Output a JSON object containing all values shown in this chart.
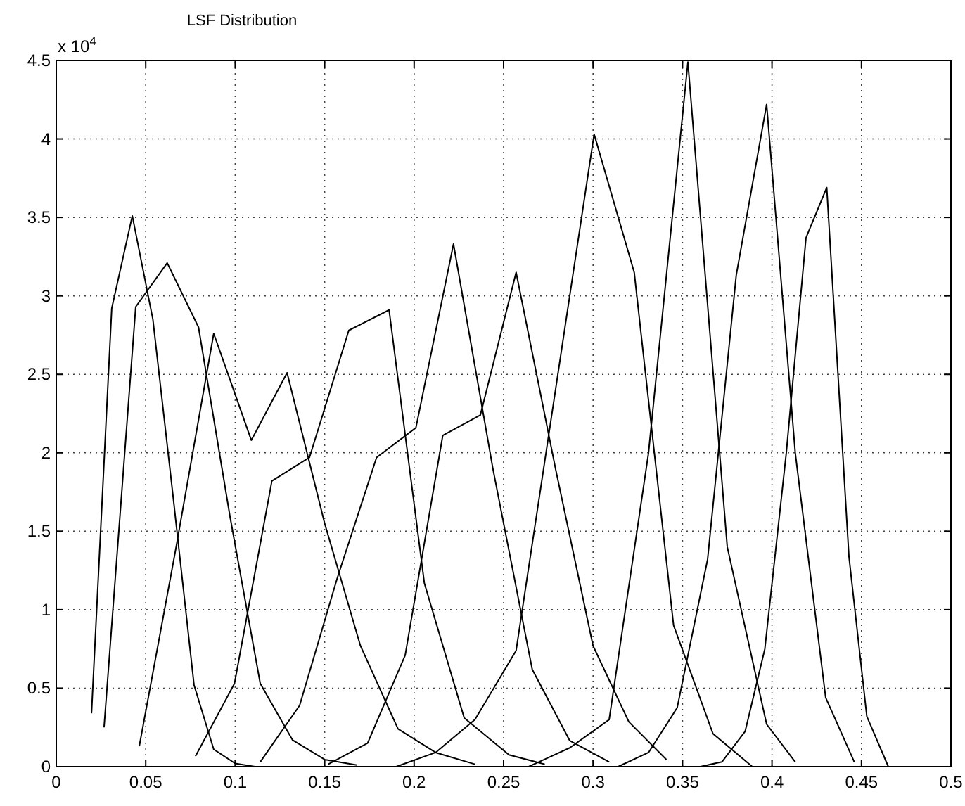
{
  "chart_data": {
    "type": "line",
    "title": "LSF Distribution",
    "annotations": [
      "x 10$^{4}$"
    ],
    "xlim": [
      0,
      0.5
    ],
    "ylim": [
      0,
      4.5
    ],
    "xticks": [
      0,
      0.05,
      0.1,
      0.15,
      0.2,
      0.25,
      0.3,
      0.35,
      0.4,
      0.45,
      0.5
    ],
    "yticks": [
      0,
      0.5,
      1,
      1.5,
      2,
      2.5,
      3,
      3.5,
      4,
      4.5
    ],
    "grid": true,
    "series": [
      {
        "color": "#000000",
        "x": [
          0.0197,
          0.031,
          0.0425,
          0.054,
          0.0655,
          0.077,
          0.088,
          0.1,
          0.111
        ],
        "values": [
          0.34,
          2.92,
          3.51,
          2.85,
          1.7,
          0.52,
          0.11,
          0.02,
          0.0
        ]
      },
      {
        "color": "#000000",
        "x": [
          0.0267,
          0.0444,
          0.062,
          0.0795,
          0.097,
          0.114,
          0.132,
          0.15,
          0.168
        ],
        "values": [
          0.25,
          2.93,
          3.21,
          2.8,
          1.6,
          0.53,
          0.17,
          0.045,
          0.01
        ]
      },
      {
        "color": "#000000",
        "x": [
          0.0464,
          0.067,
          0.088,
          0.109,
          0.129,
          0.15,
          0.17,
          0.191,
          0.212,
          0.234
        ],
        "values": [
          0.13,
          1.4,
          2.76,
          2.08,
          2.51,
          1.55,
          0.77,
          0.24,
          0.09,
          0.015
        ]
      },
      {
        "color": "#000000",
        "x": [
          0.0778,
          0.0996,
          0.1205,
          0.1415,
          0.1635,
          0.186,
          0.2057,
          0.228,
          0.253,
          0.273
        ],
        "values": [
          0.066,
          0.53,
          1.82,
          1.97,
          2.78,
          2.91,
          1.17,
          0.31,
          0.075,
          0.015
        ]
      },
      {
        "color": "#000000",
        "x": [
          0.114,
          0.136,
          0.157,
          0.179,
          0.201,
          0.222,
          0.244,
          0.266,
          0.287,
          0.309
        ],
        "values": [
          0.03,
          0.39,
          1.2,
          1.97,
          2.16,
          3.33,
          1.9,
          0.62,
          0.165,
          0.03
        ]
      },
      {
        "color": "#000000",
        "x": [
          0.152,
          0.174,
          0.195,
          0.216,
          0.237,
          0.257,
          0.279,
          0.3,
          0.32,
          0.341
        ],
        "values": [
          0.015,
          0.15,
          0.71,
          2.11,
          2.24,
          3.15,
          1.9,
          0.77,
          0.285,
          0.045
        ]
      },
      {
        "color": "#000000",
        "x": [
          0.19,
          0.212,
          0.234,
          0.257,
          0.279,
          0.3006,
          0.323,
          0.345,
          0.367,
          0.389
        ],
        "values": [
          0.0,
          0.09,
          0.3,
          0.74,
          2.4,
          4.03,
          3.15,
          0.9,
          0.21,
          0.0
        ]
      },
      {
        "color": "#000000",
        "x": [
          0.264,
          0.287,
          0.309,
          0.331,
          0.353,
          0.375,
          0.397,
          0.413
        ],
        "values": [
          0.0,
          0.12,
          0.3,
          2.0,
          4.49,
          1.4,
          0.27,
          0.03
        ]
      },
      {
        "color": "#000000",
        "x": [
          0.314,
          0.331,
          0.347,
          0.364,
          0.38,
          0.397,
          0.413,
          0.43,
          0.446
        ],
        "values": [
          0.0,
          0.09,
          0.375,
          1.32,
          3.13,
          4.22,
          2.0,
          0.44,
          0.03
        ]
      },
      {
        "color": "#000000",
        "x": [
          0.36,
          0.372,
          0.385,
          0.396,
          0.408,
          0.419,
          0.4306,
          0.443,
          0.453,
          0.465
        ],
        "values": [
          0.0,
          0.03,
          0.225,
          0.75,
          2.0,
          3.37,
          3.69,
          1.34,
          0.32,
          0.0
        ]
      }
    ]
  }
}
